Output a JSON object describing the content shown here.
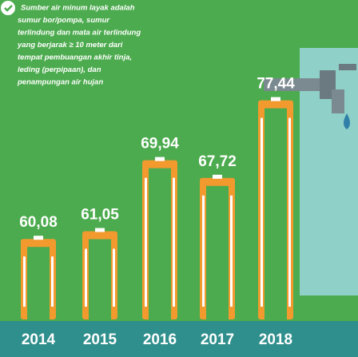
{
  "chart_data": {
    "type": "bar",
    "note": [
      "Sumber air minum layak adalah",
      "sumur bor/pompa, sumur",
      "terlindung dan mata air terlindung",
      "yang berjarak ≥ 10 meter dari",
      "tempat pembuangan akhir tinja,",
      "leding (perpipaan), dan",
      "penampungan air hujan"
    ],
    "categories": [
      "2014",
      "2015",
      "2016",
      "2017",
      "2018"
    ],
    "values": [
      60.08,
      61.05,
      69.94,
      67.72,
      77.44
    ],
    "value_labels": [
      "60,08",
      "61,05",
      "69,94",
      "67,72",
      "77,44"
    ],
    "color": "#f29a2e"
  }
}
